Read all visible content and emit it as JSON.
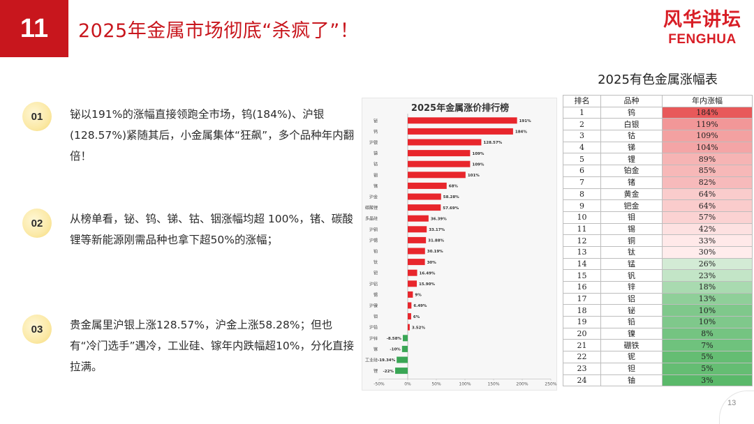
{
  "header": {
    "slide_number": "11",
    "title": "2025年金属市场彻底“杀疯了”！",
    "logo_cn": "风华讲坛",
    "logo_en": "FENGHUA"
  },
  "points": [
    {
      "badge": "01",
      "text": "铋以191%的涨幅直接领跑全市场，钨(184%)、沪银(128.57%)紧随其后，小金属集体“狂飙”，多个品种年内翻倍！"
    },
    {
      "badge": "02",
      "text": "从榜单看，铋、钨、锑、钴、铟涨幅均超 100%，锗、碳酸锂等新能源刚需品种也拿下超50%的涨幅；"
    },
    {
      "badge": "03",
      "text": "贵金属里沪银上涨128.57%，沪金上涨58.28%；但也有“冷门选手”遇冷，工业硅、镓年内跌幅超10%，分化直接拉满。"
    }
  ],
  "colors": {
    "accent_red": "#c8161d",
    "bar_positive": "#e8262c",
    "bar_negative": "#3aa655",
    "table_high": "#e8595a",
    "table_low": "#5ab96a"
  },
  "chart_data": {
    "type": "bar",
    "orientation": "horizontal",
    "title": "2025年金属涨价排行榜",
    "categories": [
      "铋",
      "钨",
      "沪银",
      "锑",
      "钴",
      "铟",
      "锗",
      "沪金",
      "碳酸锂",
      "多晶硅",
      "沪铜",
      "沪锡",
      "铂",
      "钛",
      "钯",
      "沪铝",
      "锡",
      "沪镍",
      "钼",
      "沪铅",
      "沪锌",
      "镓",
      "工业硅",
      "锂"
    ],
    "values": [
      191,
      184,
      128.57,
      109,
      109,
      101,
      68,
      58.28,
      57.69,
      36.39,
      33.17,
      31.88,
      30.19,
      30,
      16.49,
      15.9,
      9,
      6.49,
      6,
      3.52,
      -8.58,
      -10,
      -19.34,
      -22
    ],
    "value_labels": [
      "191%",
      "184%",
      "128.57%",
      "109%",
      "109%",
      "101%",
      "68%",
      "58.28%",
      "57.69%",
      "36.39%",
      "33.17%",
      "31.88%",
      "30.19%",
      "30%",
      "16.49%",
      "15.90%",
      "9%",
      "6.49%",
      "6%",
      "3.52%",
      "-8.58%",
      "-10%",
      "-19.34%",
      "-22%"
    ],
    "xlim": [
      -50,
      250
    ],
    "xticks": [
      -50,
      0,
      50,
      100,
      150,
      200,
      250
    ],
    "xtick_labels": [
      "-50%",
      "0%",
      "50%",
      "100%",
      "150%",
      "200%",
      "250%"
    ],
    "grid": false,
    "legend": "none"
  },
  "table": {
    "title": "2025有色金属涨幅表",
    "headers": [
      "排名",
      "品种",
      "年内涨幅"
    ],
    "rows": [
      {
        "rank": "1",
        "name": "钨",
        "change": "184%",
        "value": 184
      },
      {
        "rank": "2",
        "name": "白银",
        "change": "119%",
        "value": 119
      },
      {
        "rank": "3",
        "name": "钴",
        "change": "109%",
        "value": 109
      },
      {
        "rank": "4",
        "name": "锑",
        "change": "104%",
        "value": 104
      },
      {
        "rank": "5",
        "name": "锂",
        "change": "89%",
        "value": 89
      },
      {
        "rank": "6",
        "name": "铂金",
        "change": "85%",
        "value": 85
      },
      {
        "rank": "7",
        "name": "锗",
        "change": "82%",
        "value": 82
      },
      {
        "rank": "8",
        "name": "黄金",
        "change": "64%",
        "value": 64
      },
      {
        "rank": "9",
        "name": "钯金",
        "change": "64%",
        "value": 64
      },
      {
        "rank": "10",
        "name": "钼",
        "change": "57%",
        "value": 57
      },
      {
        "rank": "11",
        "name": "锡",
        "change": "42%",
        "value": 42
      },
      {
        "rank": "12",
        "name": "铜",
        "change": "33%",
        "value": 33
      },
      {
        "rank": "13",
        "name": "钛",
        "change": "30%",
        "value": 30
      },
      {
        "rank": "14",
        "name": "锰",
        "change": "26%",
        "value": 26
      },
      {
        "rank": "15",
        "name": "钒",
        "change": "23%",
        "value": 23
      },
      {
        "rank": "16",
        "name": "锌",
        "change": "18%",
        "value": 18
      },
      {
        "rank": "17",
        "name": "铝",
        "change": "13%",
        "value": 13
      },
      {
        "rank": "18",
        "name": "铋",
        "change": "10%",
        "value": 10
      },
      {
        "rank": "19",
        "name": "铅",
        "change": "10%",
        "value": 10
      },
      {
        "rank": "20",
        "name": "镍",
        "change": "8%",
        "value": 8
      },
      {
        "rank": "21",
        "name": "硼铁",
        "change": "7%",
        "value": 7
      },
      {
        "rank": "22",
        "name": "铌",
        "change": "5%",
        "value": 5
      },
      {
        "rank": "23",
        "name": "钽",
        "change": "5%",
        "value": 5
      },
      {
        "rank": "24",
        "name": "铀",
        "change": "3%",
        "value": 3
      }
    ]
  },
  "page_number": "13"
}
